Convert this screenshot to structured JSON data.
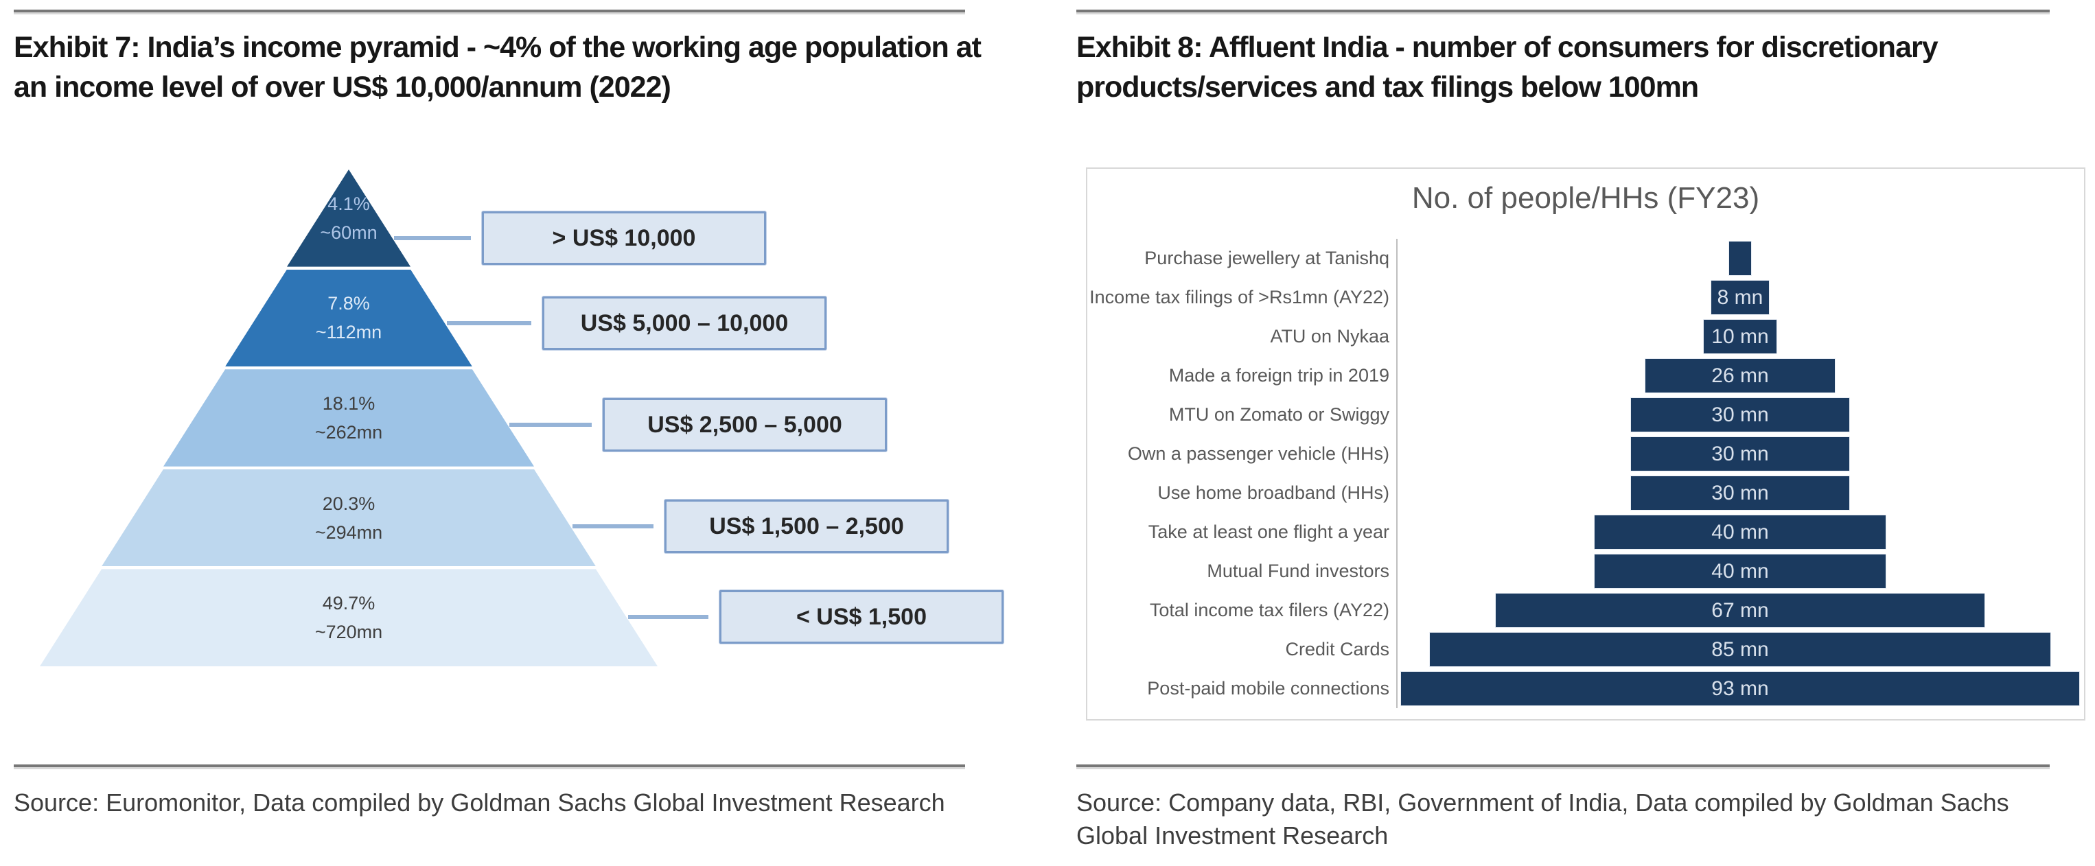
{
  "exhibit7": {
    "title": "Exhibit 7: India’s income pyramid - ~4% of the working age population at an income level of over US$ 10,000/annum (2022)",
    "source": "Source: Euromonitor, Data compiled by Goldman Sachs Global Investment Research",
    "chart_data": {
      "type": "pyramid",
      "title": "India income pyramid (2022)",
      "levels": [
        {
          "share_pct": 4.1,
          "share_label": "4.1%",
          "population": "~60mn",
          "income_range": "> US$ 10,000",
          "color": "#1F4E79",
          "text_color": "#AEC6E8"
        },
        {
          "share_pct": 7.8,
          "share_label": "7.8%",
          "population": "~112mn",
          "income_range": "US$ 5,000 – 10,000",
          "color": "#2E75B6",
          "text_color": "#DCE9F7"
        },
        {
          "share_pct": 18.1,
          "share_label": "18.1%",
          "population": "~262mn",
          "income_range": "US$ 2,500 – 5,000",
          "color": "#9DC3E6",
          "text_color": "#3F3F3F"
        },
        {
          "share_pct": 20.3,
          "share_label": "20.3%",
          "population": "~294mn",
          "income_range": "US$ 1,500 – 2,500",
          "color": "#BDD7EE",
          "text_color": "#3F3F3F"
        },
        {
          "share_pct": 49.7,
          "share_label": "49.7%",
          "population": "~720mn",
          "income_range": "< US$ 1,500",
          "color": "#DEEBF7",
          "text_color": "#3F3F3F"
        }
      ],
      "callout_fill": "#DCE6F2",
      "callout_border": "#7C9CC9",
      "connector_color": "#95B3D7"
    }
  },
  "exhibit8": {
    "title": "Exhibit 8: Affluent India - number of consumers for discretionary products/services and tax filings below 100mn",
    "source": "Source: Company data, RBI, Government of India, Data compiled by Goldman Sachs Global Investment Research",
    "chart_data": {
      "type": "bar",
      "orientation": "horizontal-centered",
      "title": "No. of people/HHs (FY23)",
      "unit": "mn",
      "xlim": [
        0,
        93
      ],
      "bar_color": "#1B3A5F",
      "value_label_color": "#D9E1EC",
      "rows": [
        {
          "category": "Purchase jewellery at Tanishq",
          "value": 3,
          "label": ""
        },
        {
          "category": "Income tax filings of >Rs1mn (AY22)",
          "value": 8,
          "label": "8 mn"
        },
        {
          "category": "ATU on Nykaa",
          "value": 10,
          "label": "10 mn"
        },
        {
          "category": "Made a foreign trip in 2019",
          "value": 26,
          "label": "26 mn"
        },
        {
          "category": "MTU on Zomato or Swiggy",
          "value": 30,
          "label": "30 mn"
        },
        {
          "category": "Own a passenger vehicle (HHs)",
          "value": 30,
          "label": "30 mn"
        },
        {
          "category": "Use home broadband (HHs)",
          "value": 30,
          "label": "30 mn"
        },
        {
          "category": "Take at least one flight a year",
          "value": 40,
          "label": "40 mn"
        },
        {
          "category": "Mutual Fund investors",
          "value": 40,
          "label": "40 mn"
        },
        {
          "category": "Total income tax filers (AY22)",
          "value": 67,
          "label": "67 mn"
        },
        {
          "category": "Credit Cards",
          "value": 85,
          "label": "85 mn"
        },
        {
          "category": "Post-paid mobile connections",
          "value": 93,
          "label": "93 mn"
        }
      ]
    }
  }
}
